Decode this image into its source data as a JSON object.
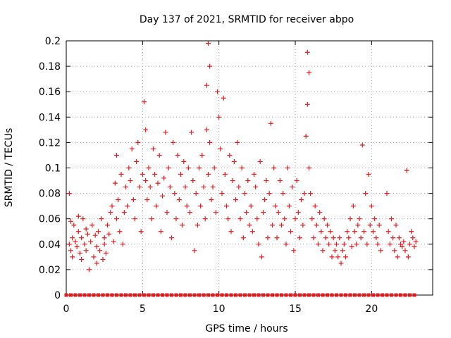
{
  "chart_data": {
    "type": "scatter",
    "title": "Day 137 of 2021, SRMTID for receiver abpo",
    "xlabel": "GPS time / hours",
    "ylabel": "SRMTID / TECUs",
    "xlim": [
      0,
      24
    ],
    "ylim": [
      0,
      0.2
    ],
    "x_ticks": [
      0,
      5,
      10,
      15,
      20
    ],
    "x_tick_labels": [
      "0",
      "5",
      "10",
      "15",
      "20"
    ],
    "y_ticks": [
      0,
      0.02,
      0.04,
      0.06,
      0.08,
      0.1,
      0.12,
      0.14,
      0.16,
      0.18,
      0.2
    ],
    "y_tick_labels": [
      "0",
      "0.02",
      "0.04",
      "0.06",
      "0.08",
      "0.1",
      "0.12",
      "0.14",
      "0.16",
      "0.18",
      "0.2"
    ],
    "grid": true,
    "marker": "+",
    "series": [
      {
        "name": "SRMTID",
        "color": "#e41a1c",
        "x": [
          0.2,
          0.2,
          0.3,
          0.3,
          0.4,
          0.4,
          0.5,
          0.6,
          0.7,
          0.8,
          0.8,
          0.9,
          1.0,
          1.0,
          1.1,
          1.2,
          1.3,
          1.3,
          1.4,
          1.5,
          1.6,
          1.7,
          1.8,
          1.9,
          2.0,
          2.0,
          2.1,
          2.2,
          2.3,
          2.4,
          2.5,
          2.5,
          2.6,
          2.7,
          2.8,
          2.9,
          3.0,
          3.1,
          3.2,
          3.3,
          3.3,
          3.4,
          3.5,
          3.6,
          3.7,
          3.8,
          3.9,
          4.0,
          4.1,
          4.2,
          4.3,
          4.4,
          4.5,
          4.6,
          4.7,
          4.8,
          4.9,
          5.0,
          5.1,
          5.2,
          5.2,
          5.3,
          5.4,
          5.5,
          5.6,
          5.7,
          5.8,
          5.9,
          6.0,
          6.1,
          6.2,
          6.3,
          6.4,
          6.5,
          6.6,
          6.7,
          6.8,
          6.9,
          7.0,
          7.1,
          7.2,
          7.3,
          7.4,
          7.5,
          7.6,
          7.7,
          7.8,
          7.9,
          8.0,
          8.1,
          8.2,
          8.3,
          8.4,
          8.5,
          8.6,
          8.7,
          8.8,
          8.9,
          9.0,
          9.1,
          9.2,
          9.2,
          9.3,
          9.3,
          9.4,
          9.4,
          9.5,
          9.6,
          9.7,
          9.8,
          9.9,
          10.0,
          10.1,
          10.2,
          10.3,
          10.4,
          10.5,
          10.6,
          10.7,
          10.8,
          10.9,
          11.0,
          11.1,
          11.2,
          11.3,
          11.4,
          11.5,
          11.6,
          11.7,
          11.8,
          11.9,
          12.0,
          12.1,
          12.2,
          12.3,
          12.4,
          12.5,
          12.6,
          12.7,
          12.8,
          12.9,
          13.0,
          13.1,
          13.2,
          13.3,
          13.4,
          13.5,
          13.6,
          13.7,
          13.8,
          13.9,
          14.0,
          14.1,
          14.2,
          14.3,
          14.4,
          14.5,
          14.6,
          14.7,
          14.8,
          14.9,
          15.0,
          15.1,
          15.2,
          15.3,
          15.4,
          15.5,
          15.6,
          15.7,
          15.8,
          15.8,
          15.9,
          15.9,
          16.0,
          16.1,
          16.2,
          16.3,
          16.4,
          16.5,
          16.6,
          16.7,
          16.8,
          16.9,
          17.0,
          17.1,
          17.2,
          17.3,
          17.4,
          17.5,
          17.6,
          17.7,
          17.8,
          17.9,
          18.0,
          18.1,
          18.2,
          18.3,
          18.4,
          18.5,
          18.6,
          18.7,
          18.8,
          18.9,
          19.0,
          19.1,
          19.2,
          19.3,
          19.4,
          19.5,
          19.6,
          19.7,
          19.8,
          19.9,
          20.0,
          20.1,
          20.2,
          20.3,
          20.4,
          20.5,
          20.6,
          21.0,
          21.1,
          21.2,
          21.3,
          21.4,
          21.5,
          21.6,
          21.7,
          21.8,
          21.9,
          22.0,
          22.1,
          22.2,
          22.3,
          22.4,
          22.5,
          22.6,
          22.7,
          22.8,
          22.9
        ],
        "y": [
          0.04,
          0.08,
          0.035,
          0.058,
          0.045,
          0.03,
          0.055,
          0.042,
          0.038,
          0.05,
          0.062,
          0.033,
          0.045,
          0.028,
          0.06,
          0.04,
          0.052,
          0.035,
          0.048,
          0.02,
          0.042,
          0.055,
          0.03,
          0.047,
          0.038,
          0.025,
          0.05,
          0.035,
          0.06,
          0.028,
          0.045,
          0.04,
          0.033,
          0.055,
          0.048,
          0.065,
          0.07,
          0.042,
          0.088,
          0.06,
          0.11,
          0.075,
          0.05,
          0.095,
          0.04,
          0.065,
          0.085,
          0.07,
          0.1,
          0.09,
          0.115,
          0.075,
          0.06,
          0.105,
          0.12,
          0.085,
          0.05,
          0.095,
          0.152,
          0.13,
          0.09,
          0.075,
          0.1,
          0.085,
          0.06,
          0.115,
          0.095,
          0.07,
          0.088,
          0.11,
          0.05,
          0.078,
          0.092,
          0.128,
          0.065,
          0.1,
          0.085,
          0.045,
          0.12,
          0.08,
          0.06,
          0.11,
          0.075,
          0.095,
          0.055,
          0.105,
          0.085,
          0.07,
          0.1,
          0.065,
          0.128,
          0.09,
          0.035,
          0.08,
          0.055,
          0.1,
          0.07,
          0.11,
          0.085,
          0.06,
          0.13,
          0.165,
          0.095,
          0.198,
          0.12,
          0.18,
          0.075,
          0.085,
          0.1,
          0.065,
          0.16,
          0.14,
          0.115,
          0.08,
          0.155,
          0.095,
          0.07,
          0.06,
          0.11,
          0.05,
          0.09,
          0.105,
          0.075,
          0.12,
          0.085,
          0.06,
          0.1,
          0.045,
          0.08,
          0.065,
          0.09,
          0.055,
          0.07,
          0.05,
          0.095,
          0.085,
          0.06,
          0.04,
          0.105,
          0.03,
          0.065,
          0.075,
          0.09,
          0.045,
          0.08,
          0.135,
          0.055,
          0.1,
          0.07,
          0.045,
          0.065,
          0.09,
          0.055,
          0.08,
          0.06,
          0.04,
          0.1,
          0.07,
          0.05,
          0.085,
          0.035,
          0.06,
          0.09,
          0.065,
          0.045,
          0.075,
          0.055,
          0.08,
          0.125,
          0.15,
          0.191,
          0.175,
          0.1,
          0.08,
          0.06,
          0.045,
          0.07,
          0.055,
          0.04,
          0.065,
          0.05,
          0.035,
          0.06,
          0.045,
          0.055,
          0.04,
          0.05,
          0.03,
          0.045,
          0.035,
          0.04,
          0.03,
          0.045,
          0.025,
          0.035,
          0.04,
          0.03,
          0.05,
          0.045,
          0.06,
          0.038,
          0.07,
          0.05,
          0.04,
          0.055,
          0.06,
          0.045,
          0.118,
          0.05,
          0.08,
          0.04,
          0.095,
          0.055,
          0.07,
          0.05,
          0.06,
          0.045,
          0.04,
          0.055,
          0.035,
          0.08,
          0.05,
          0.04,
          0.06,
          0.045,
          0.035,
          0.055,
          0.03,
          0.045,
          0.04,
          0.038,
          0.042,
          0.035,
          0.098,
          0.03,
          0.04,
          0.05,
          0.045,
          0.038,
          0.042
        ]
      },
      {
        "name": "zero-level",
        "color": "#e41a1c",
        "marker": "square",
        "x": [
          0,
          0.3,
          0.6,
          0.9,
          1.2,
          1.5,
          1.8,
          2.1,
          2.4,
          2.7,
          3.0,
          3.3,
          3.6,
          3.9,
          4.2,
          4.5,
          4.8,
          5.1,
          5.4,
          5.7,
          6.0,
          6.3,
          6.6,
          6.9,
          7.2,
          7.5,
          7.8,
          8.1,
          8.4,
          8.7,
          9.0,
          9.3,
          9.6,
          9.9,
          10.2,
          10.5,
          10.8,
          11.1,
          11.4,
          11.7,
          12.0,
          12.3,
          12.6,
          12.9,
          13.2,
          13.5,
          13.8,
          14.1,
          14.4,
          14.7,
          15.0,
          15.3,
          15.6,
          15.9,
          16.2,
          16.5,
          16.8,
          17.1,
          17.4,
          17.7,
          18.0,
          18.3,
          18.6,
          18.9,
          19.2,
          19.5,
          19.8,
          20.1,
          20.4,
          20.7,
          21.0,
          21.3,
          21.6,
          21.9,
          22.2,
          22.5,
          22.8
        ],
        "y": [
          0,
          0,
          0,
          0,
          0,
          0,
          0,
          0,
          0,
          0,
          0,
          0,
          0,
          0,
          0,
          0,
          0,
          0,
          0,
          0,
          0,
          0,
          0,
          0,
          0,
          0,
          0,
          0,
          0,
          0,
          0,
          0,
          0,
          0,
          0,
          0,
          0,
          0,
          0,
          0,
          0,
          0,
          0,
          0,
          0,
          0,
          0,
          0,
          0,
          0,
          0,
          0,
          0,
          0,
          0,
          0,
          0,
          0,
          0,
          0,
          0,
          0,
          0,
          0,
          0,
          0,
          0,
          0,
          0,
          0,
          0,
          0,
          0,
          0,
          0,
          0,
          0
        ]
      }
    ]
  }
}
